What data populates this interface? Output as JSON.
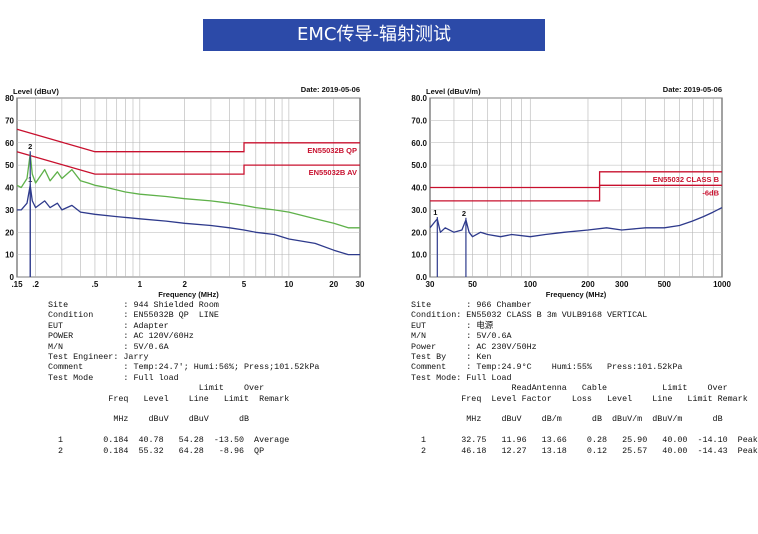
{
  "banner_title": "EMC传导-辐射测试",
  "chart_data": [
    {
      "type": "line",
      "title": "",
      "date_label": "Date: 2019-05-06",
      "ylabel": "Level (dBuV)",
      "xlabel": "Frequency (MHz)",
      "x_scale": "log",
      "xlim": [
        0.15,
        30
      ],
      "ylim": [
        0,
        80
      ],
      "y_ticks": [
        0,
        10,
        20,
        30,
        40,
        50,
        60,
        70,
        80
      ],
      "y_tick_labels": [
        "0",
        "10",
        "20",
        "30",
        "40",
        "50",
        "60",
        "70",
        "80"
      ],
      "x_ticks": [
        0.15,
        0.2,
        0.5,
        1,
        2,
        5,
        10,
        20,
        30
      ],
      "x_tick_labels": [
        ".15",
        ".2",
        ".5",
        "1",
        "2",
        "5",
        "10",
        "20",
        "30"
      ],
      "grid": true,
      "limits": [
        {
          "name": "EN55032B QP",
          "color": "#c8102e",
          "points": [
            [
              0.15,
              66
            ],
            [
              0.5,
              56
            ],
            [
              5,
              56
            ],
            [
              5,
              60
            ],
            [
              30,
              60
            ]
          ]
        },
        {
          "name": "EN55032B AV",
          "color": "#c8102e",
          "points": [
            [
              0.15,
              56
            ],
            [
              0.5,
              46
            ],
            [
              5,
              46
            ],
            [
              5,
              50
            ],
            [
              30,
              50
            ]
          ]
        }
      ],
      "series": [
        {
          "color": "#5fb14a",
          "values": [
            [
              0.15,
              41
            ],
            [
              0.16,
              40
            ],
            [
              0.175,
              44
            ],
            [
              0.184,
              55
            ],
            [
              0.19,
              46
            ],
            [
              0.2,
              42
            ],
            [
              0.23,
              48
            ],
            [
              0.25,
              43
            ],
            [
              0.28,
              47
            ],
            [
              0.3,
              44
            ],
            [
              0.35,
              48
            ],
            [
              0.4,
              43
            ],
            [
              0.45,
              42
            ],
            [
              0.5,
              41
            ],
            [
              0.6,
              40
            ],
            [
              0.8,
              38
            ],
            [
              1,
              37
            ],
            [
              1.5,
              36
            ],
            [
              2,
              35
            ],
            [
              3,
              34
            ],
            [
              4,
              33
            ],
            [
              5,
              32
            ],
            [
              6,
              31
            ],
            [
              8,
              30
            ],
            [
              10,
              29
            ],
            [
              15,
              26
            ],
            [
              20,
              24
            ],
            [
              25,
              22
            ],
            [
              30,
              22
            ]
          ]
        },
        {
          "color": "#2e3a8c",
          "values": [
            [
              0.15,
              30
            ],
            [
              0.16,
              30
            ],
            [
              0.175,
              33
            ],
            [
              0.184,
              41
            ],
            [
              0.19,
              34
            ],
            [
              0.2,
              31
            ],
            [
              0.23,
              34
            ],
            [
              0.25,
              31
            ],
            [
              0.28,
              33
            ],
            [
              0.3,
              30
            ],
            [
              0.35,
              32
            ],
            [
              0.4,
              29
            ],
            [
              0.5,
              28
            ],
            [
              0.7,
              27
            ],
            [
              1,
              26
            ],
            [
              1.5,
              25
            ],
            [
              2,
              24
            ],
            [
              3,
              23
            ],
            [
              4,
              22
            ],
            [
              5,
              21
            ],
            [
              6,
              20
            ],
            [
              8,
              19
            ],
            [
              10,
              17
            ],
            [
              15,
              15
            ],
            [
              20,
              12
            ],
            [
              25,
              10
            ],
            [
              30,
              10
            ]
          ]
        }
      ],
      "markers": [
        {
          "label": "1",
          "x": 0.184,
          "y": 40.78
        },
        {
          "label": "2",
          "x": 0.184,
          "y": 55.32
        }
      ]
    },
    {
      "type": "line",
      "title": "",
      "date_label": "Date: 2019-05-06",
      "ylabel": "Level (dBuV/m)",
      "xlabel": "Frequency (MHz)",
      "x_scale": "log",
      "xlim": [
        30,
        1000
      ],
      "ylim": [
        0,
        80
      ],
      "y_ticks": [
        0,
        10,
        20,
        30,
        40,
        50,
        60,
        70,
        80
      ],
      "y_tick_labels": [
        "0.0",
        "10.0",
        "20.0",
        "30.0",
        "40.0",
        "50.0",
        "60.0",
        "70.0",
        "80.0"
      ],
      "x_ticks": [
        30,
        50,
        100,
        200,
        300,
        500,
        1000
      ],
      "x_tick_labels": [
        "30",
        "50",
        "100",
        "200",
        "300",
        "500",
        "1000"
      ],
      "grid": true,
      "limits": [
        {
          "name": "EN55032 CLASS B",
          "color": "#c8102e",
          "points": [
            [
              30,
              40
            ],
            [
              230,
              40
            ],
            [
              230,
              47
            ],
            [
              1000,
              47
            ]
          ]
        },
        {
          "name": "-6dB",
          "color": "#c8102e",
          "points": [
            [
              30,
              34
            ],
            [
              230,
              34
            ],
            [
              230,
              41
            ],
            [
              1000,
              41
            ]
          ]
        }
      ],
      "series": [
        {
          "color": "#2e3a8c",
          "values": [
            [
              30,
              22
            ],
            [
              32,
              25
            ],
            [
              32.75,
              25.9
            ],
            [
              34,
              20
            ],
            [
              36,
              22
            ],
            [
              40,
              20
            ],
            [
              44,
              21
            ],
            [
              46.18,
              25.57
            ],
            [
              48,
              20
            ],
            [
              50,
              18
            ],
            [
              55,
              20
            ],
            [
              60,
              19
            ],
            [
              70,
              18
            ],
            [
              80,
              19
            ],
            [
              100,
              18
            ],
            [
              120,
              19
            ],
            [
              150,
              20
            ],
            [
              200,
              21
            ],
            [
              250,
              22
            ],
            [
              300,
              21
            ],
            [
              400,
              22
            ],
            [
              500,
              22
            ],
            [
              600,
              23
            ],
            [
              700,
              25
            ],
            [
              800,
              27
            ],
            [
              900,
              29
            ],
            [
              1000,
              31
            ]
          ]
        }
      ],
      "markers": [
        {
          "label": "1",
          "x": 32.75,
          "y": 25.9
        },
        {
          "label": "2",
          "x": 46.18,
          "y": 25.57
        }
      ]
    }
  ],
  "left_report": [
    "Site           : 944 Shielded Room",
    "Condition      : EN55032B QP  LINE",
    "EUT            : Adapter",
    "POWER          : AC 120V/60Hz",
    "M/N            : 5V/0.6A",
    "Test Engineer: Jarry",
    "Comment        : Temp:24.7'; Humi:56%; Press;101.52kPa",
    "Test Mode      : Full load",
    "                              Limit    Over",
    "            Freq   Level    Line   Limit  Remark",
    "",
    "             MHz    dBuV    dBuV      dB",
    "",
    "  1        0.184  40.78   54.28  -13.50  Average",
    "  2        0.184  55.32   64.28   -8.96  QP"
  ],
  "right_report": [
    "Site       : 966 Chamber",
    "Condition: EN55032 CLASS B 3m VULB9168 VERTICAL",
    "EUT        : 电源",
    "M/N        : 5V/0.6A",
    "Power      : AC 230V/50Hz",
    "Test By    : Ken",
    "Comment    : Temp:24.9°C    Humi:55%   Press:101.52kPa",
    "Test Mode: Full Load",
    "                    ReadAntenna   Cable           Limit    Over",
    "          Freq  Level Factor    Loss   Level    Line   Limit Remark",
    "",
    "           MHz    dBuV    dB/m      dB  dBuV/m  dBuV/m      dB",
    "",
    "  1       32.75   11.96   13.66    0.28   25.90   40.00  -14.10  Peak",
    "  2       46.18   12.27   13.18    0.12   25.57   40.00  -14.43  Peak"
  ]
}
